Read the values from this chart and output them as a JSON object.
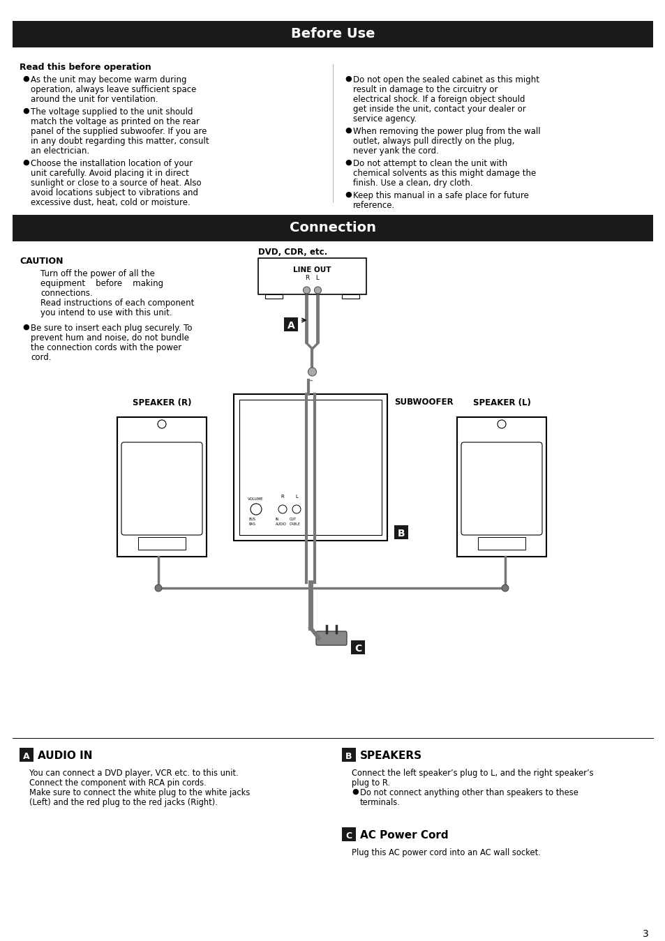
{
  "page_bg": "#ffffff",
  "header_bg": "#1a1a1a",
  "header1_text": "Before Use",
  "header2_text": "Connection",
  "section1_title": "Read this before operation",
  "bullets_left": [
    "As the unit may become warm during operation, always leave sufficient space around the unit for ventilation.",
    "The voltage supplied to the unit should match the voltage as printed on the rear panel of the supplied subwoofer. If you are in any doubt regarding this matter, consult an electrician.",
    "Choose the installation location of your unit carefully. Avoid placing it in direct sunlight or close to a source of heat. Also avoid locations subject to vibrations and excessive dust, heat, cold or moisture."
  ],
  "bullets_right": [
    "Do not open the sealed cabinet as this might result in damage to the circuitry or electrical shock. If a foreign object should get inside the unit, contact your dealer or service agency.",
    "When removing the power plug from the wall outlet, always pull directly on the plug, never yank the cord.",
    "Do not attempt to clean the unit with chemical solvents as this might damage the finish. Use a clean, dry cloth.",
    "Keep this manual in a safe place for future reference."
  ],
  "caution_title": "CAUTION",
  "caution_indent_lines": [
    "Turn off the power of all the",
    "equipment    before    making",
    "connections.",
    "Read instructions of each component",
    "you intend to use with this unit."
  ],
  "caution_bullet_lines": [
    "Be sure to insert each plug securely. To",
    "prevent hum and noise, do not bundle",
    "the connection cords with the power",
    "cord."
  ],
  "dvd_label": "DVD, CDR, etc.",
  "line_out_label": "LINE OUT",
  "rl_label": "R   L",
  "speaker_r_label": "SPEAKER (R)",
  "speaker_l_label": "SPEAKER (L)",
  "subwoofer_label": "SUBWOOFER",
  "label_a": "A",
  "label_b": "B",
  "label_c": "C",
  "section_a_title": "AUDIO IN",
  "section_a_lines": [
    "You can connect a DVD player, VCR etc. to this unit.",
    "Connect the component with RCA pin cords.",
    "Make sure to connect the white plug to the white jacks",
    "(Left) and the red plug to the red jacks (Right)."
  ],
  "section_b_title": "SPEAKERS",
  "section_b_lines": [
    "Connect the left speaker’s plug to L, and the right speaker’s",
    "plug to R."
  ],
  "section_b_bullet_lines": [
    "Do not connect anything other than speakers to these",
    "terminals."
  ],
  "section_c_title": "AC Power Cord",
  "section_c_text": "Plug this AC power cord into an AC wall socket.",
  "page_number": "3"
}
